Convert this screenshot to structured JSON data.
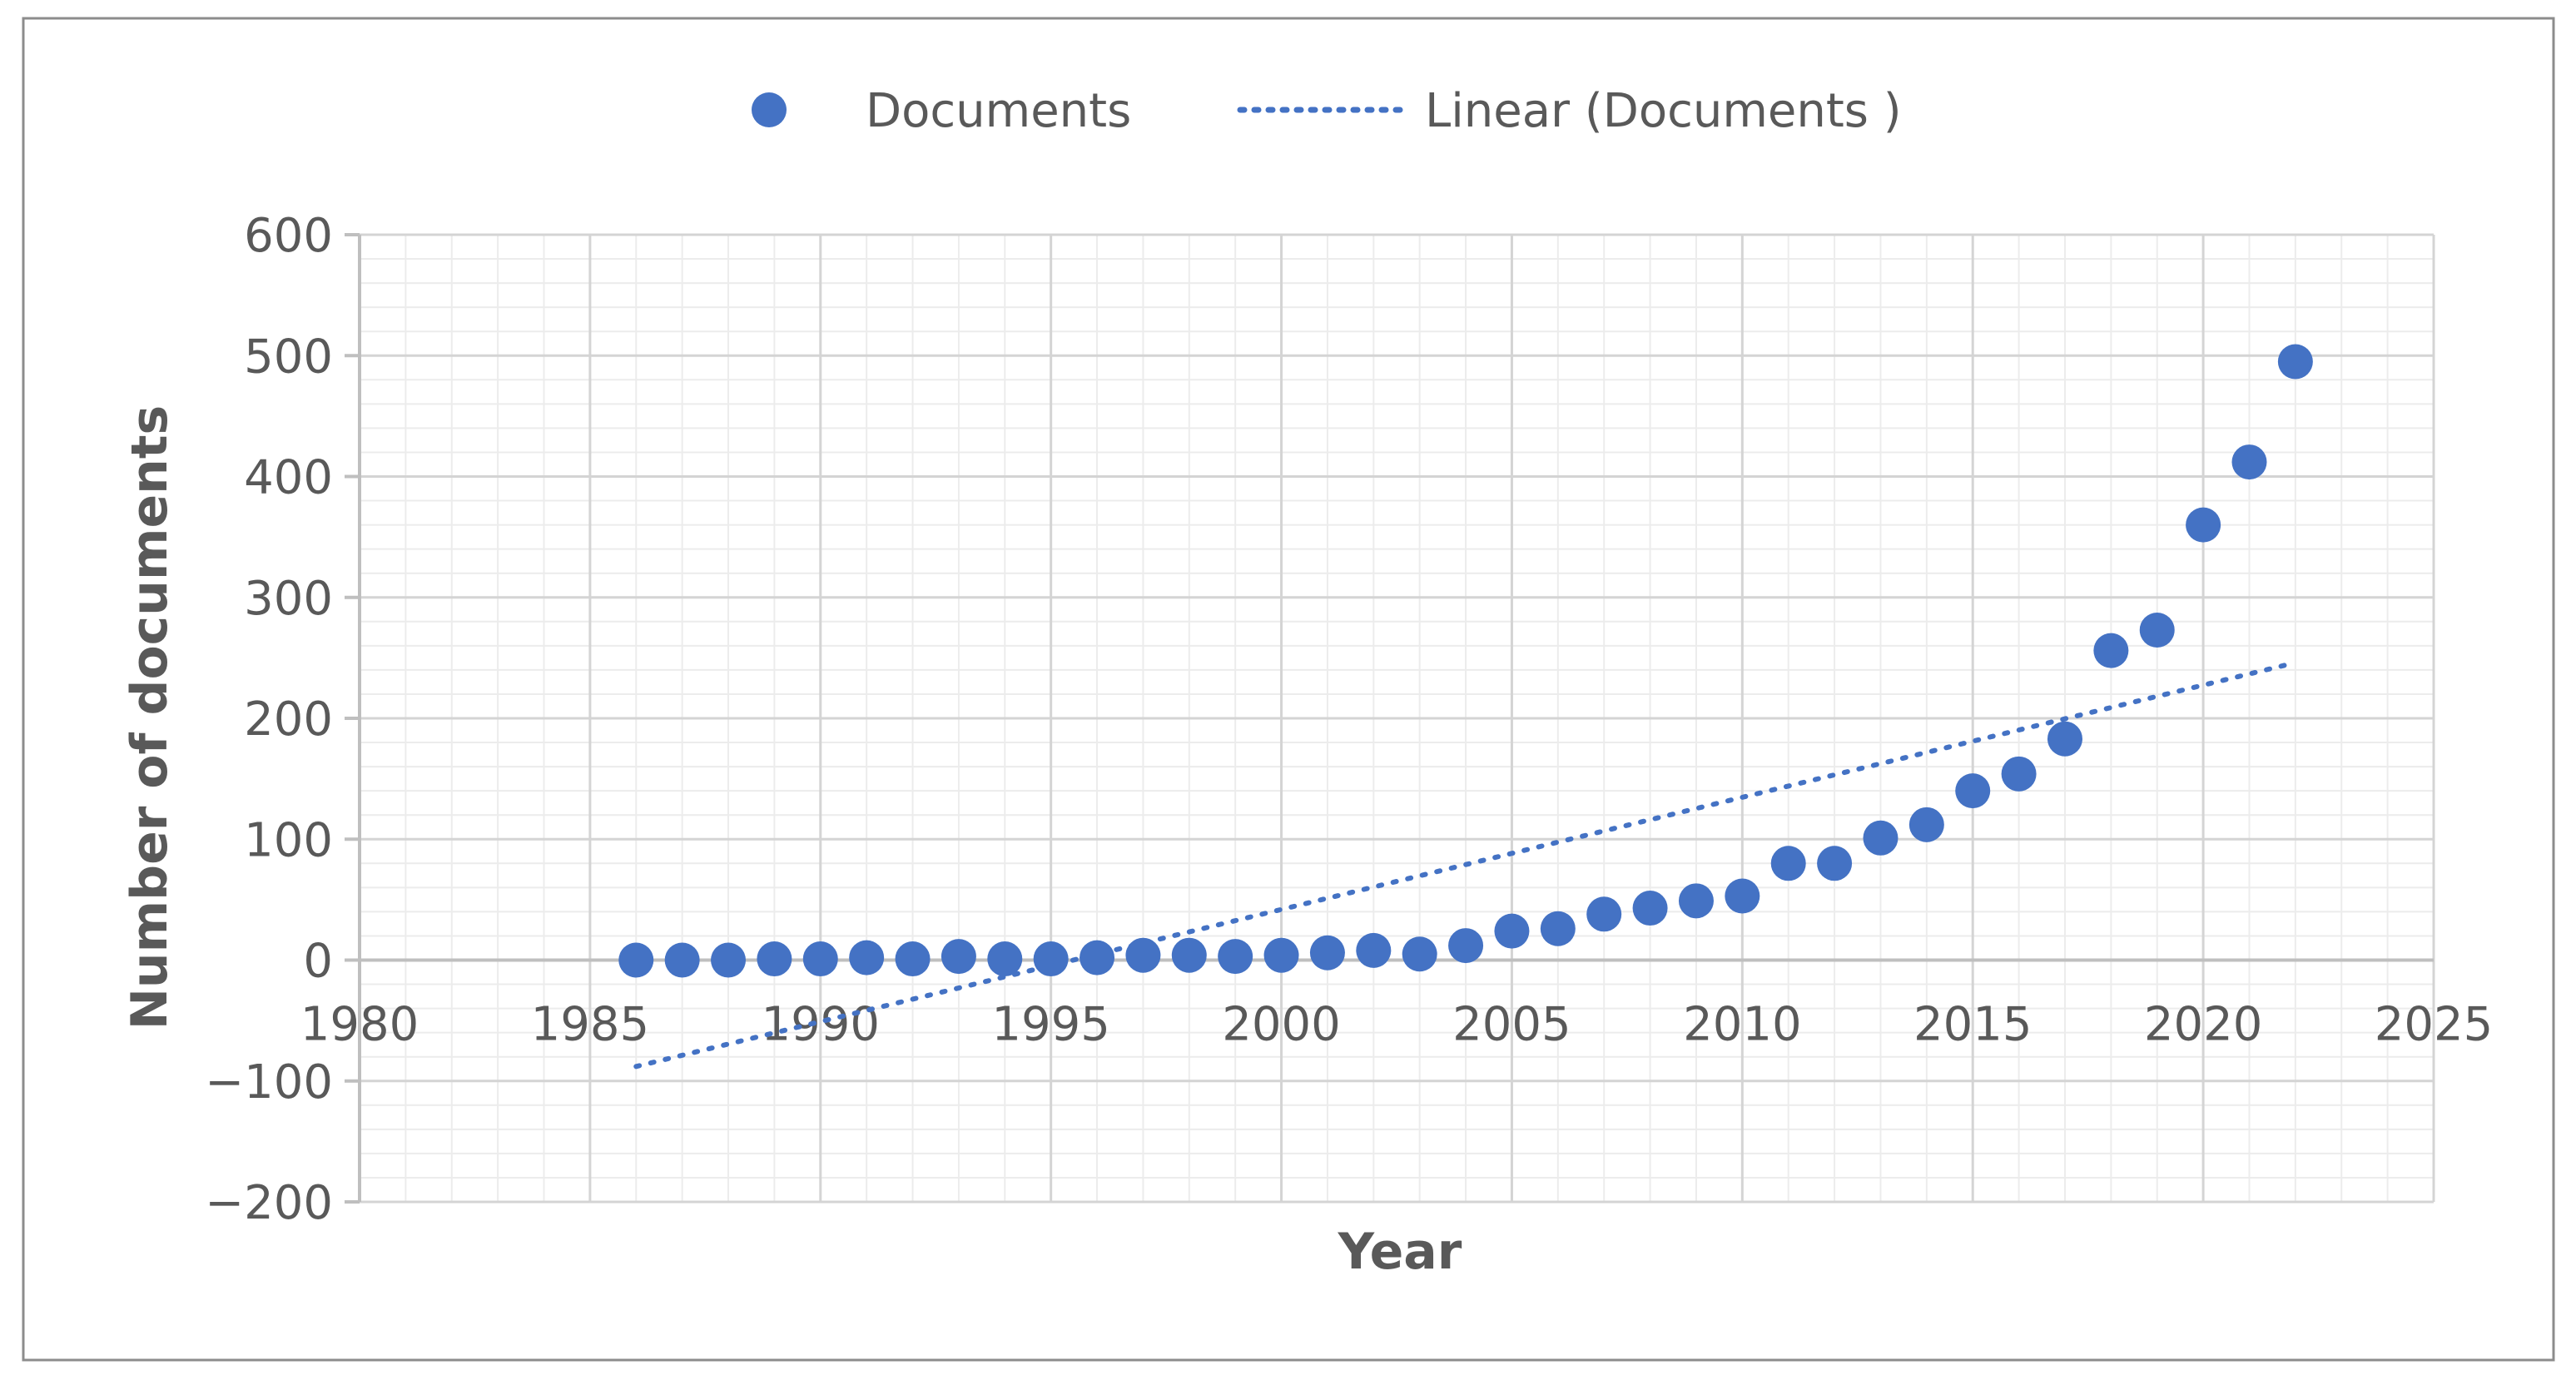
{
  "chart_data": {
    "type": "scatter",
    "title": "",
    "xlabel": "Year",
    "ylabel": "Number of documents",
    "xlim": [
      1980,
      2025
    ],
    "ylim": [
      -200,
      600
    ],
    "x_ticks": [
      1980,
      1985,
      1990,
      1995,
      2000,
      2005,
      2010,
      2015,
      2020,
      2025
    ],
    "y_ticks": [
      600,
      500,
      400,
      300,
      200,
      100,
      0,
      -100,
      -200
    ],
    "x_tick_labels": [
      "1980",
      "1985",
      "1990",
      "1995",
      "2000",
      "2005",
      "2010",
      "2015",
      "2020",
      "2025"
    ],
    "y_tick_labels": [
      "600",
      "500",
      "400",
      "300",
      "200",
      "100",
      "0",
      "−100",
      "−200"
    ],
    "grid": true,
    "legend_position": "top-center",
    "series": [
      {
        "name": "Documents",
        "kind": "points",
        "color": "#4472C4",
        "x": [
          1986,
          1987,
          1988,
          1989,
          1990,
          1991,
          1992,
          1993,
          1994,
          1995,
          1996,
          1997,
          1998,
          1999,
          2000,
          2001,
          2002,
          2003,
          2004,
          2005,
          2006,
          2007,
          2008,
          2009,
          2010,
          2011,
          2012,
          2013,
          2014,
          2015,
          2016,
          2017,
          2018,
          2019,
          2020,
          2021,
          2022
        ],
        "y": [
          0,
          0,
          0,
          1,
          1,
          2,
          1,
          3,
          1,
          1,
          2,
          4,
          4,
          3,
          4,
          6,
          8,
          5,
          12,
          24,
          26,
          38,
          43,
          49,
          53,
          80,
          80,
          101,
          112,
          140,
          154,
          183,
          256,
          273,
          360,
          412,
          495
        ]
      },
      {
        "name": "Linear (Documents )",
        "kind": "trendline",
        "style": "dotted",
        "color": "#4472C4",
        "x": [
          1986,
          2022
        ],
        "y": [
          -88,
          246
        ]
      }
    ]
  }
}
